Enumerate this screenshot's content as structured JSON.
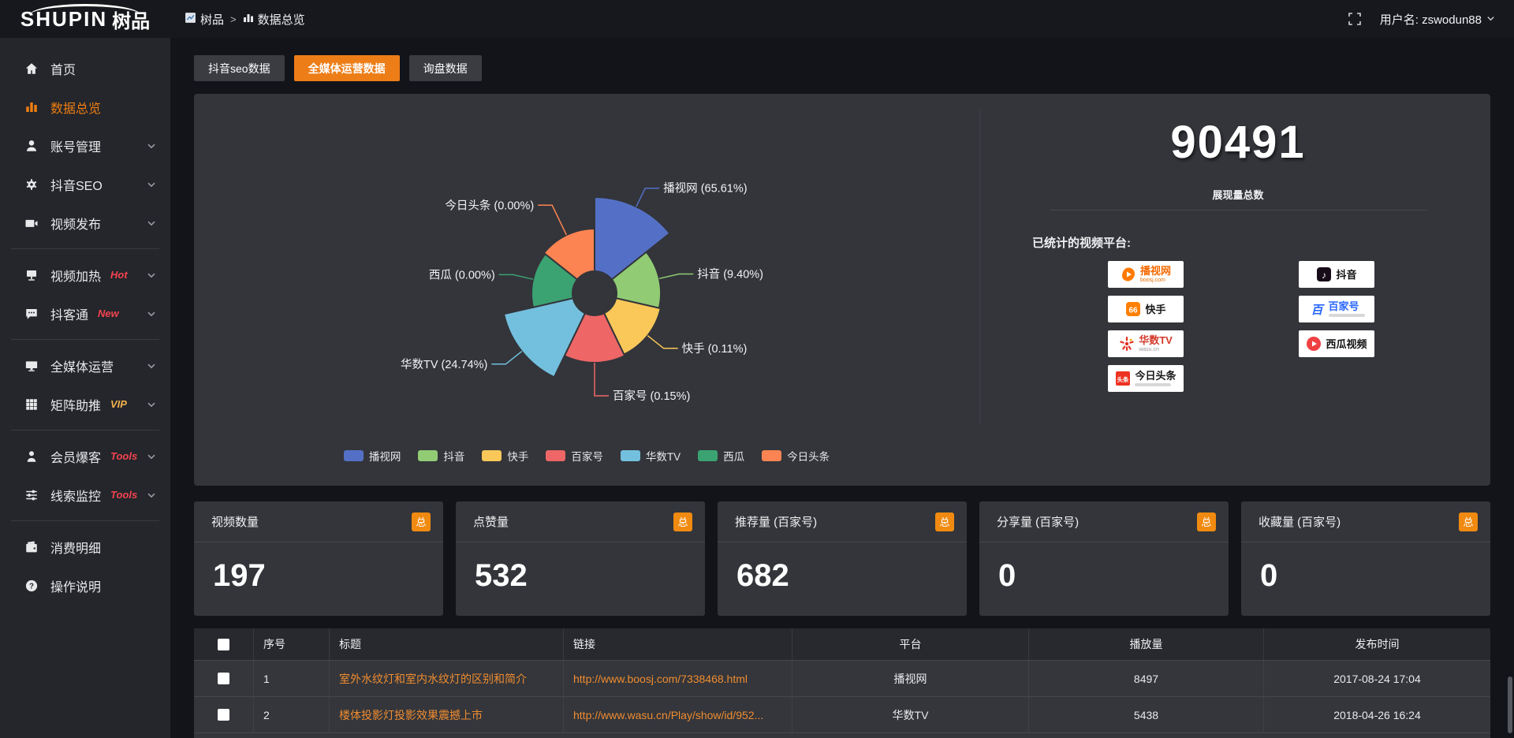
{
  "topbar": {
    "logo_main": "SHUPIN",
    "logo_cn": "树品",
    "breadcrumb_root": "树品",
    "breadcrumb_sep": ">",
    "breadcrumb_current": "数据总览",
    "username": "用户名: zswodun88"
  },
  "sidebar": {
    "items": [
      {
        "label": "首页",
        "icon": "home",
        "active": false,
        "arrow": false,
        "tag": "",
        "divider_after": false
      },
      {
        "label": "数据总览",
        "icon": "chart",
        "active": true,
        "arrow": false,
        "tag": "",
        "divider_after": false
      },
      {
        "label": "账号管理",
        "icon": "user",
        "active": false,
        "arrow": true,
        "tag": "",
        "divider_after": false
      },
      {
        "label": "抖音SEO",
        "icon": "gear",
        "active": false,
        "arrow": true,
        "tag": "",
        "divider_after": false
      },
      {
        "label": "视频发布",
        "icon": "video",
        "active": false,
        "arrow": true,
        "tag": "",
        "divider_after": true
      },
      {
        "label": "视频加热",
        "icon": "heat",
        "active": false,
        "arrow": true,
        "tag": "Hot",
        "tag_color": "#f4434f",
        "divider_after": false
      },
      {
        "label": "抖客通",
        "icon": "comment",
        "active": false,
        "arrow": true,
        "tag": "New",
        "tag_color": "#f4434f",
        "divider_after": true
      },
      {
        "label": "全媒体运营",
        "icon": "monitor",
        "active": false,
        "arrow": true,
        "tag": "",
        "divider_after": false
      },
      {
        "label": "矩阵助推",
        "icon": "grid",
        "active": false,
        "arrow": true,
        "tag": "VIP",
        "tag_color": "#f2b04e",
        "divider_after": true
      },
      {
        "label": "会员爆客",
        "icon": "member",
        "active": false,
        "arrow": true,
        "tag": "Tools",
        "tag_color": "#f4434f",
        "divider_after": false
      },
      {
        "label": "线索监控",
        "icon": "sliders",
        "active": false,
        "arrow": true,
        "tag": "Tools",
        "tag_color": "#f4434f",
        "divider_after": true
      },
      {
        "label": "消费明细",
        "icon": "wallet",
        "active": false,
        "arrow": false,
        "tag": "",
        "divider_after": false
      },
      {
        "label": "操作说明",
        "icon": "question",
        "active": false,
        "arrow": false,
        "tag": "",
        "divider_after": false
      }
    ]
  },
  "tabs": [
    {
      "label": "抖音seo数据",
      "active": false
    },
    {
      "label": "全媒体运营数据",
      "active": true
    },
    {
      "label": "询盘数据",
      "active": false
    }
  ],
  "chart_data": {
    "type": "pie",
    "style": "nightingale-rose-donut",
    "categories": [
      "播视网",
      "抖音",
      "快手",
      "百家号",
      "华数TV",
      "西瓜",
      "今日头条"
    ],
    "values": [
      65.61,
      9.4,
      0.11,
      0.15,
      24.74,
      0.0,
      0.0
    ],
    "unit": "percent",
    "labels": [
      "播视网 (65.61%)",
      "抖音 (9.40%)",
      "快手 (0.11%)",
      "百家号 (0.15%)",
      "华数TV (24.74%)",
      "西瓜 (0.00%)",
      "今日头条 (0.00%)"
    ],
    "colors": [
      "#5470c6",
      "#91cc75",
      "#fac858",
      "#ee6666",
      "#73c0de",
      "#3ba272",
      "#fc8452"
    ],
    "legend": [
      "播视网",
      "抖音",
      "快手",
      "百家号",
      "华数TV",
      "西瓜",
      "今日头条"
    ],
    "legend_position": "bottom",
    "slice_radii": [
      122,
      84,
      86,
      88,
      118,
      80,
      82
    ],
    "inner_radius": 28
  },
  "summary": {
    "total_value": "90491",
    "total_label": "展现量总数",
    "platforms_label": "已统计的视频平台:",
    "platform_badges": [
      {
        "name": "播视网",
        "sub": "boosj.com",
        "col": "left",
        "icon": "boosj",
        "icon_glyph": "▶",
        "text_color": "#f56a00"
      },
      {
        "name": "快手",
        "sub": "",
        "col": "left",
        "icon": "kuaishou",
        "icon_glyph": "66",
        "text_color": "#1a1a1a"
      },
      {
        "name": "华数TV",
        "sub": "wasu.cn",
        "col": "left",
        "icon": "wasu",
        "icon_glyph": "✳",
        "text_color": "#d43a2a"
      },
      {
        "name": "今日头条",
        "sub": "",
        "col": "left",
        "icon": "toutiao",
        "icon_glyph": "头条",
        "text_color": "#1a1a1a"
      },
      {
        "name": "抖音",
        "sub": "",
        "col": "right",
        "icon": "douyin",
        "icon_glyph": "♪",
        "text_color": "#111111"
      },
      {
        "name": "百家号",
        "sub": "",
        "col": "right",
        "icon": "baijiahao",
        "icon_glyph": "百",
        "text_color": "#2a66ff"
      },
      {
        "name": "西瓜视频",
        "sub": "",
        "col": "right",
        "icon": "xigua",
        "icon_glyph": "▶",
        "text_color": "#111111"
      }
    ]
  },
  "stat_cards": [
    {
      "label": "视频数量",
      "badge": "总",
      "value": "197"
    },
    {
      "label": "点赞量",
      "badge": "总",
      "value": "532"
    },
    {
      "label": "推荐量 (百家号)",
      "badge": "总",
      "value": "682"
    },
    {
      "label": "分享量 (百家号)",
      "badge": "总",
      "value": "0"
    },
    {
      "label": "收藏量 (百家号)",
      "badge": "总",
      "value": "0"
    }
  ],
  "table": {
    "headers": [
      "序号",
      "标题",
      "链接",
      "平台",
      "播放量",
      "发布时间"
    ],
    "rows": [
      {
        "index": "1",
        "title": "室外水纹灯和室内水纹灯的区别和简介",
        "link": "http://www.boosj.com/7338468.html",
        "platform": "播视网",
        "plays": "8497",
        "time": "2017-08-24 17:04"
      },
      {
        "index": "2",
        "title": "楼体投影灯投影效果震撼上市",
        "link": "http://www.wasu.cn/Play/show/id/952...",
        "platform": "华数TV",
        "plays": "5438",
        "time": "2018-04-26 16:24"
      }
    ]
  },
  "accent": {
    "orange": "#ed7d16",
    "badge_orange": "#f08a10",
    "link_orange": "#ef8c30",
    "red": "#f4434f",
    "gold": "#f2b04e"
  }
}
